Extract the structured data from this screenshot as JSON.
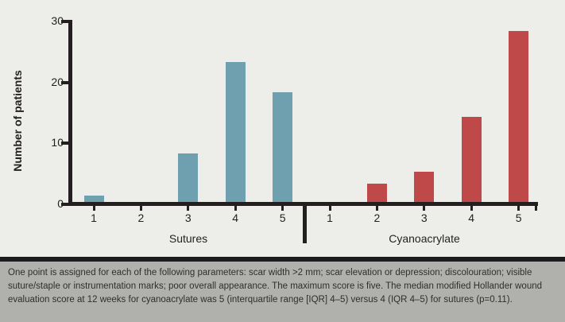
{
  "chart_data": {
    "type": "bar",
    "title": "",
    "xlabel": "",
    "ylabel": "Number of patients",
    "ylim": [
      0,
      30
    ],
    "yticks": [
      0,
      10,
      20,
      30
    ],
    "categories": [
      "1",
      "2",
      "3",
      "4",
      "5"
    ],
    "series": [
      {
        "name": "Sutures",
        "color": "#6FA0AF",
        "values": [
          1,
          0,
          8,
          23,
          18
        ]
      },
      {
        "name": "Cyanoacrylate",
        "color": "#BF4848",
        "values": [
          0,
          3,
          5,
          14,
          28
        ]
      }
    ],
    "legend_position": "none",
    "grid": false
  },
  "caption": {
    "text": "One point is assigned for each of the following parameters: scar width >2 mm; scar elevation or depression; discolouration; visible suture/staple or instrumentation marks; poor overall appearance. The maximum score is five. The median modified Hollander wound evaluation score at 12 weeks for cyanoacrylate was 5 (interquartile range [IQR] 4–5) versus 4 (IQR 4–5) for sutures (p=0.11)."
  },
  "colors": {
    "background": "#EDEEE9",
    "axis_ink": "#231F20",
    "sutures_bar": "#6FA0AF",
    "cyanoacrylate_bar": "#BF4848",
    "separator": "#1C1C1C",
    "caption_background": "#B0B1AD",
    "caption_text": "#2E2E2E"
  }
}
